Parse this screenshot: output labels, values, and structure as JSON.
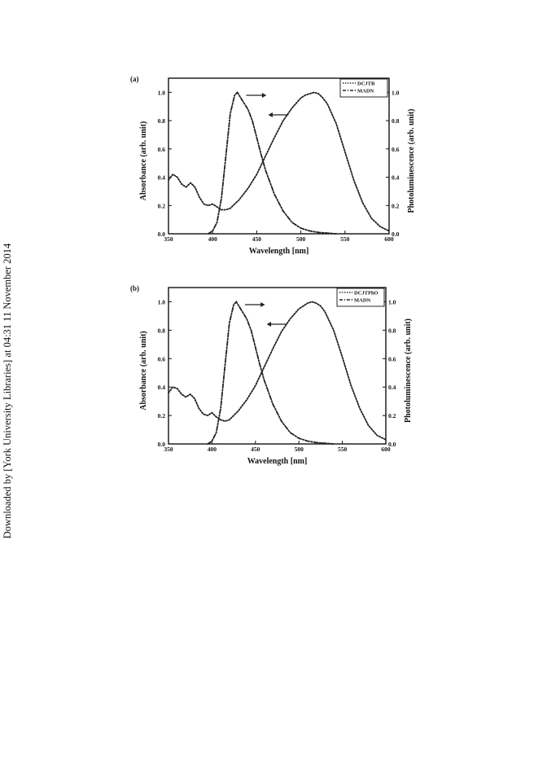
{
  "side_note": "Downloaded by [York University Libraries] at 04:31 11 November 2014",
  "colors": {
    "ink": "#222222",
    "frame": "#111111"
  },
  "chart_data": [
    {
      "type": "line",
      "panel_label": "(a)",
      "xlabel": "Wavelength [nm]",
      "ylabel_left": "Absorbance (arb. unit)",
      "ylabel_right": "Photoluminescence (arb. unit)",
      "xlim": [
        350,
        600
      ],
      "ylim_left": [
        0,
        1.1
      ],
      "ylim_right": [
        0,
        1.1
      ],
      "xticks": [
        "350",
        "400",
        "450",
        "500",
        "550",
        "600"
      ],
      "yticks_left": [
        "0.0",
        "0.2",
        "0.4",
        "0.6",
        "0.8",
        "1.0"
      ],
      "yticks_right": [
        "0.0",
        "0.2",
        "0.4",
        "0.6",
        "0.8",
        "1.0"
      ],
      "legend_position": "top-right",
      "series": [
        {
          "name": "DCJTB",
          "style": "dotted",
          "axis": "left",
          "x": [
            350,
            355,
            360,
            365,
            370,
            375,
            380,
            385,
            390,
            395,
            400,
            405,
            410,
            415,
            420,
            430,
            440,
            450,
            460,
            470,
            480,
            490,
            500,
            505,
            510,
            515,
            520,
            525,
            530,
            540,
            550,
            560,
            570,
            580,
            590,
            600
          ],
          "y": [
            0.38,
            0.42,
            0.4,
            0.35,
            0.33,
            0.36,
            0.33,
            0.26,
            0.21,
            0.2,
            0.21,
            0.19,
            0.17,
            0.17,
            0.18,
            0.24,
            0.32,
            0.42,
            0.55,
            0.68,
            0.8,
            0.89,
            0.96,
            0.98,
            0.99,
            1.0,
            0.99,
            0.96,
            0.92,
            0.78,
            0.58,
            0.38,
            0.22,
            0.11,
            0.05,
            0.02
          ]
        },
        {
          "name": "MADN",
          "style": "dash-dot",
          "axis": "right",
          "x": [
            395,
            400,
            405,
            410,
            415,
            420,
            425,
            428,
            431,
            435,
            440,
            445,
            450,
            455,
            460,
            470,
            480,
            490,
            500,
            510,
            520,
            530,
            540
          ],
          "y": [
            0.0,
            0.02,
            0.08,
            0.25,
            0.55,
            0.85,
            0.98,
            1.0,
            0.97,
            0.93,
            0.88,
            0.8,
            0.68,
            0.56,
            0.45,
            0.28,
            0.16,
            0.08,
            0.04,
            0.02,
            0.01,
            0.005,
            0.0
          ]
        }
      ]
    },
    {
      "type": "line",
      "panel_label": "(b)",
      "xlabel": "Wavelength [nm]",
      "ylabel_left": "Absorbance (arb. unit)",
      "ylabel_right": "Photoluminescence (arb. unit)",
      "xlim": [
        350,
        600
      ],
      "ylim_left": [
        0,
        1.1
      ],
      "ylim_right": [
        0,
        1.1
      ],
      "xticks": [
        "350",
        "400",
        "450",
        "500",
        "550",
        "600"
      ],
      "yticks_left": [
        "0.0",
        "0.2",
        "0.4",
        "0.6",
        "0.8",
        "1.0"
      ],
      "yticks_right": [
        "0.0",
        "0.2",
        "0.4",
        "0.6",
        "0.8",
        "1.0"
      ],
      "legend_position": "top-right",
      "series": [
        {
          "name": "DCJTPhO",
          "style": "dotted",
          "axis": "left",
          "x": [
            350,
            355,
            360,
            365,
            370,
            375,
            380,
            385,
            390,
            395,
            400,
            405,
            410,
            415,
            420,
            430,
            440,
            450,
            460,
            470,
            480,
            490,
            500,
            505,
            510,
            515,
            520,
            525,
            530,
            540,
            550,
            560,
            570,
            580,
            590,
            600
          ],
          "y": [
            0.36,
            0.4,
            0.39,
            0.35,
            0.33,
            0.35,
            0.32,
            0.25,
            0.21,
            0.2,
            0.22,
            0.19,
            0.17,
            0.16,
            0.17,
            0.23,
            0.31,
            0.41,
            0.54,
            0.67,
            0.79,
            0.88,
            0.95,
            0.97,
            0.99,
            1.0,
            0.99,
            0.97,
            0.93,
            0.8,
            0.61,
            0.41,
            0.25,
            0.13,
            0.06,
            0.03
          ]
        },
        {
          "name": "MADN",
          "style": "dash-dot",
          "axis": "right",
          "x": [
            395,
            400,
            405,
            410,
            415,
            420,
            425,
            428,
            431,
            435,
            440,
            445,
            450,
            455,
            460,
            470,
            480,
            490,
            500,
            510,
            520,
            530,
            540
          ],
          "y": [
            0.0,
            0.02,
            0.08,
            0.25,
            0.55,
            0.85,
            0.98,
            1.0,
            0.97,
            0.93,
            0.88,
            0.8,
            0.68,
            0.56,
            0.45,
            0.28,
            0.16,
            0.08,
            0.04,
            0.02,
            0.01,
            0.005,
            0.0
          ]
        }
      ]
    }
  ]
}
